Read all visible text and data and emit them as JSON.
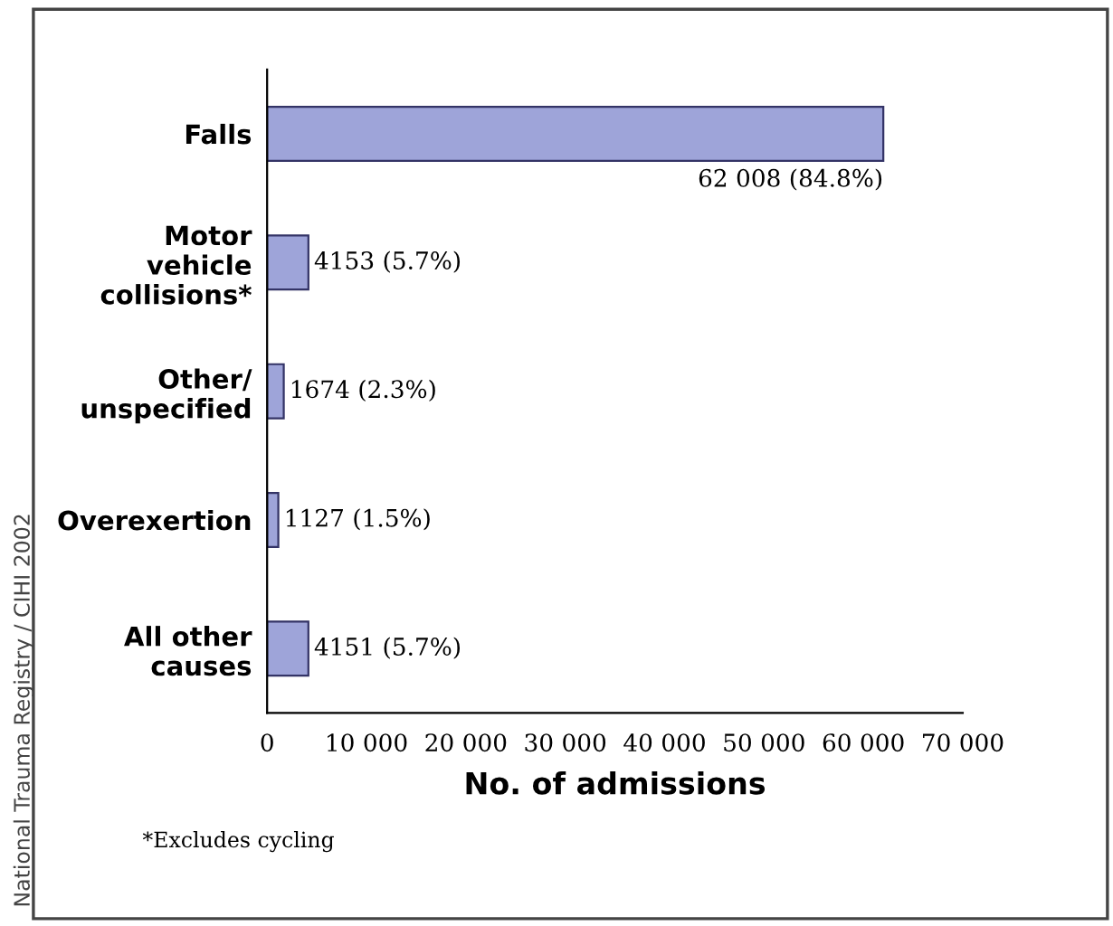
{
  "chart_data": {
    "type": "bar",
    "orientation": "horizontal",
    "categories": [
      "Falls",
      "Motor\nvehicle\ncollisions*",
      "Other/\nunspecified",
      "Overexertion",
      "All other\ncauses"
    ],
    "values": [
      62008,
      4153,
      1674,
      1127,
      4151
    ],
    "value_labels": [
      "62 008 (84.8%)",
      "4153 (5.7%)",
      "1674 (2.3%)",
      "1127 (1.5%)",
      "4151 (5.7%)"
    ],
    "color": "#9ea4d9",
    "xlim": [
      0,
      70000
    ],
    "xticks": [
      0,
      {
        "value": 10000,
        "label": "10 000"
      },
      {
        "value": 20000,
        "label": "20 000"
      },
      {
        "value": 30000,
        "label": "30 000"
      },
      {
        "value": 40000,
        "label": "40 000"
      },
      {
        "value": 50000,
        "label": "50 000"
      },
      {
        "value": 60000,
        "label": "60 000"
      },
      {
        "value": 70000,
        "label": "70 000"
      }
    ],
    "xlabel": "No. of admissions",
    "grid": false,
    "annotations": [
      "*Excludes cycling",
      "National Trauma Registry / CIHI 2002"
    ]
  }
}
